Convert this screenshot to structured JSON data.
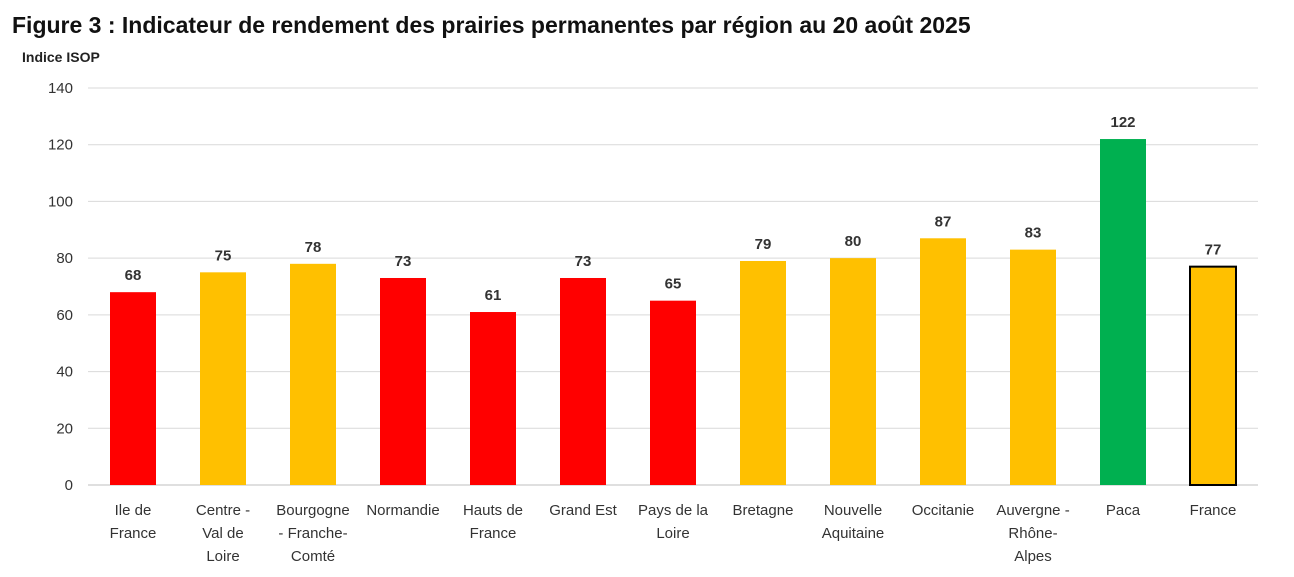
{
  "chart_data": {
    "type": "bar",
    "title": "Figure 3 : Indicateur de rendement des prairies permanentes par région au 20 août 2025",
    "ylabel": "Indice ISOP",
    "xlabel": "",
    "ylim": [
      0,
      140
    ],
    "yticks": [
      0,
      20,
      40,
      60,
      80,
      100,
      120,
      140
    ],
    "grid": true,
    "legend": "none",
    "categories": [
      [
        "Ile de",
        "France"
      ],
      [
        "Centre -",
        "Val de",
        "Loire"
      ],
      [
        "Bourgogne",
        "- Franche-",
        "Comté"
      ],
      [
        "Normandie"
      ],
      [
        "Hauts de",
        "France"
      ],
      [
        "Grand Est"
      ],
      [
        "Pays de la",
        "Loire"
      ],
      [
        "Bretagne"
      ],
      [
        "Nouvelle",
        "Aquitaine"
      ],
      [
        "Occitanie"
      ],
      [
        "Auvergne -",
        "Rhône-",
        "Alpes"
      ],
      [
        "Paca"
      ],
      [
        "France"
      ]
    ],
    "values": [
      68,
      75,
      78,
      73,
      61,
      73,
      65,
      79,
      80,
      87,
      83,
      122,
      77
    ],
    "data_labels": [
      "68",
      "75",
      "78",
      "73",
      "61",
      "73",
      "65",
      "79",
      "80",
      "87",
      "83",
      "122",
      "77"
    ],
    "bar_colors": [
      "#ff0000",
      "#ffc000",
      "#ffc000",
      "#ff0000",
      "#ff0000",
      "#ff0000",
      "#ff0000",
      "#ffc000",
      "#ffc000",
      "#ffc000",
      "#ffc000",
      "#00b050",
      "#ffc000"
    ],
    "outlined": [
      false,
      false,
      false,
      false,
      false,
      false,
      false,
      false,
      false,
      false,
      false,
      false,
      true
    ]
  }
}
